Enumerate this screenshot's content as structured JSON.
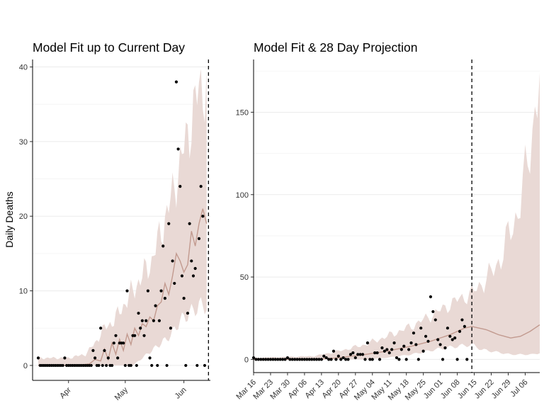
{
  "figure": {
    "ylabel": "Daily Deaths"
  },
  "colors": {
    "ribbon": "#e9d9d5",
    "median_line": "#c29a8f",
    "points": "#000000",
    "grid": "#ebebeb"
  },
  "chart_data": [
    {
      "type": "scatter",
      "title": "Model Fit up to Current Day",
      "xlabel": "",
      "ylabel": "Daily Deaths",
      "x_axis": "date",
      "xlim": [
        "2020-03-13",
        "2020-06-15"
      ],
      "ylim": [
        -2,
        41
      ],
      "yticks": [
        0,
        10,
        20,
        30,
        40
      ],
      "xticks": [
        {
          "date": "2020-04-01",
          "label": "Apr"
        },
        {
          "date": "2020-05-01",
          "label": "May"
        },
        {
          "date": "2020-06-01",
          "label": "Jun"
        }
      ],
      "grid": true,
      "current_day": "2020-06-14",
      "observed": [
        [
          "2020-03-16",
          1
        ],
        [
          "2020-03-17",
          0
        ],
        [
          "2020-03-18",
          0
        ],
        [
          "2020-03-19",
          0
        ],
        [
          "2020-03-20",
          0
        ],
        [
          "2020-03-21",
          0
        ],
        [
          "2020-03-22",
          0
        ],
        [
          "2020-03-23",
          0
        ],
        [
          "2020-03-24",
          0
        ],
        [
          "2020-03-25",
          0
        ],
        [
          "2020-03-26",
          0
        ],
        [
          "2020-03-27",
          0
        ],
        [
          "2020-03-28",
          0
        ],
        [
          "2020-03-29",
          0
        ],
        [
          "2020-03-30",
          1
        ],
        [
          "2020-03-31",
          0
        ],
        [
          "2020-04-01",
          0
        ],
        [
          "2020-04-02",
          0
        ],
        [
          "2020-04-03",
          0
        ],
        [
          "2020-04-04",
          0
        ],
        [
          "2020-04-05",
          0
        ],
        [
          "2020-04-06",
          0
        ],
        [
          "2020-04-07",
          0
        ],
        [
          "2020-04-08",
          0
        ],
        [
          "2020-04-09",
          0
        ],
        [
          "2020-04-10",
          0
        ],
        [
          "2020-04-11",
          0
        ],
        [
          "2020-04-12",
          0
        ],
        [
          "2020-04-13",
          0
        ],
        [
          "2020-04-14",
          2
        ],
        [
          "2020-04-15",
          1
        ],
        [
          "2020-04-16",
          0
        ],
        [
          "2020-04-17",
          0
        ],
        [
          "2020-04-18",
          5
        ],
        [
          "2020-04-19",
          0
        ],
        [
          "2020-04-20",
          2
        ],
        [
          "2020-04-21",
          0
        ],
        [
          "2020-04-22",
          1
        ],
        [
          "2020-04-23",
          0
        ],
        [
          "2020-04-24",
          0
        ],
        [
          "2020-04-25",
          3
        ],
        [
          "2020-04-26",
          4
        ],
        [
          "2020-04-27",
          1
        ],
        [
          "2020-04-28",
          3
        ],
        [
          "2020-04-29",
          3
        ],
        [
          "2020-04-30",
          3
        ],
        [
          "2020-05-01",
          0
        ],
        [
          "2020-05-02",
          10
        ],
        [
          "2020-05-03",
          0
        ],
        [
          "2020-05-04",
          0
        ],
        [
          "2020-05-05",
          4
        ],
        [
          "2020-05-06",
          4
        ],
        [
          "2020-05-07",
          0
        ],
        [
          "2020-05-08",
          7
        ],
        [
          "2020-05-09",
          5
        ],
        [
          "2020-05-10",
          6
        ],
        [
          "2020-05-11",
          4
        ],
        [
          "2020-05-12",
          6
        ],
        [
          "2020-05-13",
          10
        ],
        [
          "2020-05-14",
          1
        ],
        [
          "2020-05-15",
          0
        ],
        [
          "2020-05-16",
          6
        ],
        [
          "2020-05-17",
          8
        ],
        [
          "2020-05-18",
          0
        ],
        [
          "2020-05-19",
          6
        ],
        [
          "2020-05-20",
          10
        ],
        [
          "2020-05-21",
          16
        ],
        [
          "2020-05-22",
          9
        ],
        [
          "2020-05-23",
          0
        ],
        [
          "2020-05-24",
          19
        ],
        [
          "2020-05-25",
          5
        ],
        [
          "2020-05-26",
          14
        ],
        [
          "2020-05-27",
          11
        ],
        [
          "2020-05-28",
          38
        ],
        [
          "2020-05-29",
          29
        ],
        [
          "2020-05-30",
          24
        ],
        [
          "2020-05-31",
          12
        ],
        [
          "2020-06-01",
          9
        ],
        [
          "2020-06-02",
          0
        ],
        [
          "2020-06-03",
          7
        ],
        [
          "2020-06-04",
          19
        ],
        [
          "2020-06-05",
          14
        ],
        [
          "2020-06-06",
          12
        ],
        [
          "2020-06-07",
          13
        ],
        [
          "2020-06-08",
          0
        ],
        [
          "2020-06-09",
          17
        ],
        [
          "2020-06-10",
          24
        ],
        [
          "2020-06-11",
          20
        ],
        [
          "2020-06-12",
          0
        ]
      ],
      "median": [
        [
          "2020-03-16",
          0
        ],
        [
          "2020-03-25",
          0
        ],
        [
          "2020-04-05",
          0
        ],
        [
          "2020-04-12",
          0.2
        ],
        [
          "2020-04-15",
          0.8
        ],
        [
          "2020-04-18",
          0.6
        ],
        [
          "2020-04-20",
          2.2
        ],
        [
          "2020-04-22",
          0.8
        ],
        [
          "2020-04-24",
          3
        ],
        [
          "2020-04-26",
          1.5
        ],
        [
          "2020-04-28",
          3.5
        ],
        [
          "2020-04-30",
          2
        ],
        [
          "2020-05-02",
          4.2
        ],
        [
          "2020-05-04",
          2.8
        ],
        [
          "2020-05-06",
          5
        ],
        [
          "2020-05-08",
          4
        ],
        [
          "2020-05-10",
          5.6
        ],
        [
          "2020-05-12",
          5.2
        ],
        [
          "2020-05-14",
          6.5
        ],
        [
          "2020-05-16",
          6
        ],
        [
          "2020-05-18",
          8
        ],
        [
          "2020-05-20",
          8.5
        ],
        [
          "2020-05-22",
          11
        ],
        [
          "2020-05-24",
          9.5
        ],
        [
          "2020-05-26",
          12
        ],
        [
          "2020-05-28",
          15
        ],
        [
          "2020-05-30",
          14
        ],
        [
          "2020-06-01",
          12.5
        ],
        [
          "2020-06-03",
          13.5
        ],
        [
          "2020-06-05",
          18
        ],
        [
          "2020-06-07",
          16
        ],
        [
          "2020-06-09",
          19
        ],
        [
          "2020-06-11",
          21
        ],
        [
          "2020-06-13",
          19
        ]
      ],
      "band": [
        [
          "2020-03-16",
          0,
          1
        ],
        [
          "2020-04-01",
          0,
          1
        ],
        [
          "2020-04-10",
          0,
          1.5
        ],
        [
          "2020-04-15",
          0,
          3
        ],
        [
          "2020-04-20",
          0,
          5
        ],
        [
          "2020-04-25",
          0,
          6
        ],
        [
          "2020-04-30",
          0,
          8
        ],
        [
          "2020-05-05",
          0,
          10
        ],
        [
          "2020-05-10",
          1,
          12
        ],
        [
          "2020-05-15",
          2,
          14
        ],
        [
          "2020-05-20",
          3,
          18
        ],
        [
          "2020-05-25",
          4,
          22
        ],
        [
          "2020-05-30",
          6,
          27
        ],
        [
          "2020-06-04",
          7,
          32
        ],
        [
          "2020-06-09",
          8,
          37
        ],
        [
          "2020-06-13",
          8,
          38
        ]
      ]
    },
    {
      "type": "scatter",
      "title": "Model Fit & 28 Day Projection",
      "xlabel": "",
      "ylabel": "",
      "x_axis": "date",
      "xlim": [
        "2020-03-16",
        "2020-07-12"
      ],
      "ylim": [
        -8,
        182
      ],
      "yticks": [
        0,
        50,
        100,
        150
      ],
      "xticks": [
        {
          "date": "2020-03-16",
          "label": "Mar 16"
        },
        {
          "date": "2020-03-23",
          "label": "Mar 23"
        },
        {
          "date": "2020-03-30",
          "label": "Mar 30"
        },
        {
          "date": "2020-04-06",
          "label": "Apr 06"
        },
        {
          "date": "2020-04-13",
          "label": "Apr 13"
        },
        {
          "date": "2020-04-20",
          "label": "Apr 20"
        },
        {
          "date": "2020-04-27",
          "label": "Apr 27"
        },
        {
          "date": "2020-05-04",
          "label": "May 04"
        },
        {
          "date": "2020-05-11",
          "label": "May 11"
        },
        {
          "date": "2020-05-18",
          "label": "May 18"
        },
        {
          "date": "2020-05-25",
          "label": "May 25"
        },
        {
          "date": "2020-06-01",
          "label": "Jun 01"
        },
        {
          "date": "2020-06-08",
          "label": "Jun 08"
        },
        {
          "date": "2020-06-15",
          "label": "Jun 15"
        },
        {
          "date": "2020-06-22",
          "label": "Jun 22"
        },
        {
          "date": "2020-06-29",
          "label": "Jun 29"
        },
        {
          "date": "2020-07-06",
          "label": "Jul 06"
        }
      ],
      "grid": true,
      "current_day": "2020-06-14",
      "observed_ref": 0,
      "median": [
        [
          "2020-03-16",
          0
        ],
        [
          "2020-04-10",
          0
        ],
        [
          "2020-04-20",
          1
        ],
        [
          "2020-05-01",
          3
        ],
        [
          "2020-05-10",
          5
        ],
        [
          "2020-05-20",
          8
        ],
        [
          "2020-05-28",
          11
        ],
        [
          "2020-06-05",
          15
        ],
        [
          "2020-06-11",
          19
        ],
        [
          "2020-06-14",
          20
        ],
        [
          "2020-06-20",
          18
        ],
        [
          "2020-06-25",
          15
        ],
        [
          "2020-06-30",
          13
        ],
        [
          "2020-07-04",
          14
        ],
        [
          "2020-07-08",
          17
        ],
        [
          "2020-07-12",
          21
        ]
      ],
      "band": [
        [
          "2020-03-16",
          0,
          1
        ],
        [
          "2020-04-10",
          0,
          2
        ],
        [
          "2020-04-20",
          0,
          5
        ],
        [
          "2020-05-01",
          0,
          9
        ],
        [
          "2020-05-10",
          1,
          14
        ],
        [
          "2020-05-20",
          3,
          20
        ],
        [
          "2020-05-30",
          6,
          28
        ],
        [
          "2020-06-08",
          8,
          36
        ],
        [
          "2020-06-14",
          9,
          40
        ],
        [
          "2020-06-18",
          6,
          46
        ],
        [
          "2020-06-22",
          5,
          52
        ],
        [
          "2020-06-26",
          4,
          62
        ],
        [
          "2020-06-30",
          3,
          78
        ],
        [
          "2020-07-03",
          3,
          90
        ],
        [
          "2020-07-06",
          3,
          110
        ],
        [
          "2020-07-09",
          3,
          140
        ],
        [
          "2020-07-12",
          4,
          172
        ]
      ]
    }
  ]
}
